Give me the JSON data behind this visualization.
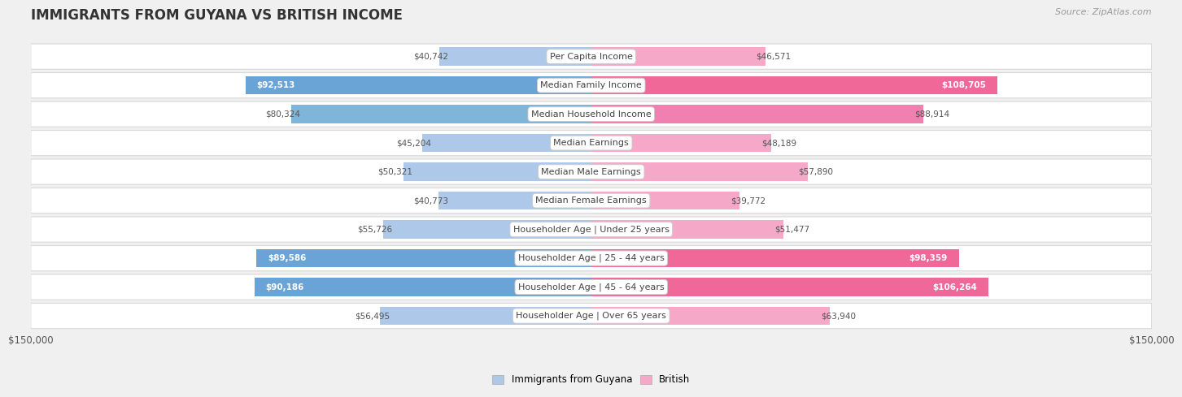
{
  "title": "IMMIGRANTS FROM GUYANA VS BRITISH INCOME",
  "source": "Source: ZipAtlas.com",
  "categories": [
    "Per Capita Income",
    "Median Family Income",
    "Median Household Income",
    "Median Earnings",
    "Median Male Earnings",
    "Median Female Earnings",
    "Householder Age | Under 25 years",
    "Householder Age | 25 - 44 years",
    "Householder Age | 45 - 64 years",
    "Householder Age | Over 65 years"
  ],
  "guyana_values": [
    40742,
    92513,
    80324,
    45204,
    50321,
    40773,
    55726,
    89586,
    90186,
    56495
  ],
  "british_values": [
    46571,
    108705,
    88914,
    48189,
    57890,
    39772,
    51477,
    98359,
    106264,
    63940
  ],
  "guyana_labels": [
    "$40,742",
    "$92,513",
    "$80,324",
    "$45,204",
    "$50,321",
    "$40,773",
    "$55,726",
    "$89,586",
    "$90,186",
    "$56,495"
  ],
  "british_labels": [
    "$46,571",
    "$108,705",
    "$88,914",
    "$48,189",
    "$57,890",
    "$39,772",
    "$51,477",
    "$98,359",
    "$106,264",
    "$63,940"
  ],
  "guyana_color_light": "#adc8e8",
  "guyana_color_dark": "#6aa3d5",
  "british_color_light": "#f5a8c8",
  "british_color_dark": "#f06898",
  "max_value": 150000,
  "x_label_left": "$150,000",
  "x_label_right": "$150,000",
  "legend_guyana": "Immigrants from Guyana",
  "legend_british": "British",
  "guyana_dark_rows": [
    1,
    7,
    8
  ],
  "british_dark_rows": [
    1,
    7,
    8
  ],
  "guyana_medium_rows": [
    2
  ],
  "british_medium_rows": [
    2
  ]
}
